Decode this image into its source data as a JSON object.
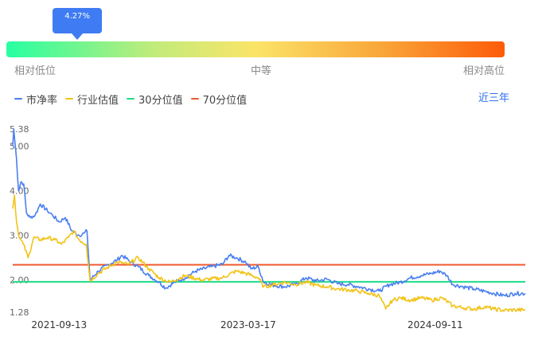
{
  "gauge": {
    "marker_label": "4.27%",
    "percentile": 4.27,
    "low_label": "相对低位",
    "mid_label": "中等",
    "high_label": "相对高位"
  },
  "legend": {
    "items": [
      {
        "label": "市净率",
        "color": "#4a7ff0"
      },
      {
        "label": "行业估值",
        "color": "#f2c318"
      },
      {
        "label": "30分位值",
        "color": "#1fdc86"
      },
      {
        "label": "70分位值",
        "color": "#f0582b"
      }
    ],
    "period_label": "近三年"
  },
  "chart_data": {
    "type": "line",
    "y_ticks": [
      "5.38",
      "5.00",
      "4.00",
      "3.00",
      "2.00",
      "1.28"
    ],
    "ylim": [
      1.28,
      5.38
    ],
    "x_tick_labels": [
      "2021-09-13",
      "2023-03-17",
      "2024-09-11"
    ],
    "xlim": [
      "2021-05-01",
      "2025-05-31"
    ],
    "series": [
      {
        "name": "市净率",
        "color": "#4a7ff0",
        "points": [
          [
            "2021-05-01",
            5.0
          ],
          [
            "2021-05-04",
            5.38
          ],
          [
            "2021-05-12",
            4.7
          ],
          [
            "2021-05-18",
            4.0
          ],
          [
            "2021-05-25",
            4.2
          ],
          [
            "2021-06-02",
            4.15
          ],
          [
            "2021-06-10",
            3.5
          ],
          [
            "2021-06-20",
            3.4
          ],
          [
            "2021-07-05",
            3.45
          ],
          [
            "2021-07-20",
            3.7
          ],
          [
            "2021-08-10",
            3.55
          ],
          [
            "2021-08-25",
            3.45
          ],
          [
            "2021-09-13",
            3.3
          ],
          [
            "2021-10-01",
            3.4
          ],
          [
            "2021-10-20",
            3.1
          ],
          [
            "2021-11-10",
            3.0
          ],
          [
            "2021-11-25",
            3.05
          ],
          [
            "2021-12-03",
            3.1
          ],
          [
            "2021-12-12",
            2.0
          ],
          [
            "2022-01-05",
            2.2
          ],
          [
            "2022-02-05",
            2.35
          ],
          [
            "2022-03-01",
            2.45
          ],
          [
            "2022-03-15",
            2.55
          ],
          [
            "2022-04-10",
            2.4
          ],
          [
            "2022-05-01",
            2.3
          ],
          [
            "2022-06-01",
            2.1
          ],
          [
            "2022-07-01",
            1.95
          ],
          [
            "2022-07-20",
            1.82
          ],
          [
            "2022-08-15",
            1.95
          ],
          [
            "2022-09-15",
            2.05
          ],
          [
            "2022-10-15",
            2.2
          ],
          [
            "2022-12-01",
            2.3
          ],
          [
            "2023-01-01",
            2.35
          ],
          [
            "2023-01-20",
            2.55
          ],
          [
            "2023-02-10",
            2.5
          ],
          [
            "2023-03-10",
            2.4
          ],
          [
            "2023-03-25",
            2.25
          ],
          [
            "2023-04-15",
            2.3
          ],
          [
            "2023-05-01",
            1.95
          ],
          [
            "2023-06-01",
            1.88
          ],
          [
            "2023-07-01",
            1.85
          ],
          [
            "2023-08-01",
            1.9
          ],
          [
            "2023-09-01",
            2.05
          ],
          [
            "2023-10-01",
            1.98
          ],
          [
            "2023-11-01",
            2.02
          ],
          [
            "2023-12-01",
            1.92
          ],
          [
            "2024-01-01",
            1.9
          ],
          [
            "2024-02-01",
            1.85
          ],
          [
            "2024-03-01",
            1.8
          ],
          [
            "2024-04-01",
            1.75
          ],
          [
            "2024-05-01",
            1.9
          ],
          [
            "2024-06-01",
            1.95
          ],
          [
            "2024-07-01",
            2.05
          ],
          [
            "2024-08-01",
            2.1
          ],
          [
            "2024-09-01",
            2.15
          ],
          [
            "2024-09-25",
            2.2
          ],
          [
            "2024-10-15",
            2.1
          ],
          [
            "2024-11-01",
            1.9
          ],
          [
            "2024-12-01",
            1.85
          ],
          [
            "2025-01-01",
            1.8
          ],
          [
            "2025-02-01",
            1.75
          ],
          [
            "2025-03-01",
            1.7
          ],
          [
            "2025-04-01",
            1.65
          ],
          [
            "2025-05-01",
            1.7
          ],
          [
            "2025-05-31",
            1.7
          ]
        ]
      },
      {
        "name": "行业估值",
        "color": "#f2c318",
        "points": [
          [
            "2021-05-01",
            3.6
          ],
          [
            "2021-05-06",
            3.9
          ],
          [
            "2021-05-12",
            3.3
          ],
          [
            "2021-05-20",
            2.95
          ],
          [
            "2021-06-01",
            2.8
          ],
          [
            "2021-06-15",
            2.5
          ],
          [
            "2021-07-01",
            2.95
          ],
          [
            "2021-07-20",
            2.9
          ],
          [
            "2021-08-10",
            2.95
          ],
          [
            "2021-09-01",
            2.9
          ],
          [
            "2021-09-20",
            2.8
          ],
          [
            "2021-10-10",
            2.95
          ],
          [
            "2021-10-25",
            3.1
          ],
          [
            "2021-11-10",
            2.9
          ],
          [
            "2021-12-01",
            2.8
          ],
          [
            "2021-12-12",
            1.98
          ],
          [
            "2022-01-05",
            2.15
          ],
          [
            "2022-02-05",
            2.3
          ],
          [
            "2022-03-01",
            2.4
          ],
          [
            "2022-04-01",
            2.35
          ],
          [
            "2022-05-01",
            2.5
          ],
          [
            "2022-06-01",
            2.25
          ],
          [
            "2022-07-01",
            2.05
          ],
          [
            "2022-08-01",
            1.95
          ],
          [
            "2022-09-15",
            2.1
          ],
          [
            "2022-11-01",
            2.0
          ],
          [
            "2023-01-01",
            2.05
          ],
          [
            "2023-02-10",
            2.2
          ],
          [
            "2023-03-10",
            2.15
          ],
          [
            "2023-04-15",
            2.05
          ],
          [
            "2023-05-01",
            1.85
          ],
          [
            "2023-06-01",
            1.9
          ],
          [
            "2023-07-01",
            1.95
          ],
          [
            "2023-08-01",
            1.9
          ],
          [
            "2023-09-01",
            1.95
          ],
          [
            "2023-10-01",
            1.88
          ],
          [
            "2023-11-01",
            1.85
          ],
          [
            "2023-12-01",
            1.8
          ],
          [
            "2024-01-01",
            1.78
          ],
          [
            "2024-02-01",
            1.75
          ],
          [
            "2024-03-01",
            1.7
          ],
          [
            "2024-04-01",
            1.65
          ],
          [
            "2024-04-20",
            1.35
          ],
          [
            "2024-05-10",
            1.55
          ],
          [
            "2024-06-01",
            1.6
          ],
          [
            "2024-07-01",
            1.55
          ],
          [
            "2024-08-01",
            1.6
          ],
          [
            "2024-09-01",
            1.55
          ],
          [
            "2024-10-01",
            1.6
          ],
          [
            "2024-11-01",
            1.42
          ],
          [
            "2024-12-01",
            1.38
          ],
          [
            "2025-01-01",
            1.35
          ],
          [
            "2025-02-01",
            1.4
          ],
          [
            "2025-03-01",
            1.35
          ],
          [
            "2025-04-01",
            1.32
          ],
          [
            "2025-05-01",
            1.33
          ],
          [
            "2025-05-31",
            1.33
          ]
        ]
      }
    ],
    "reference_lines": [
      {
        "name": "30分位值",
        "value": 1.96,
        "color": "#1fdc86"
      },
      {
        "name": "70分位值",
        "value": 2.34,
        "color": "#f0582b"
      }
    ]
  }
}
